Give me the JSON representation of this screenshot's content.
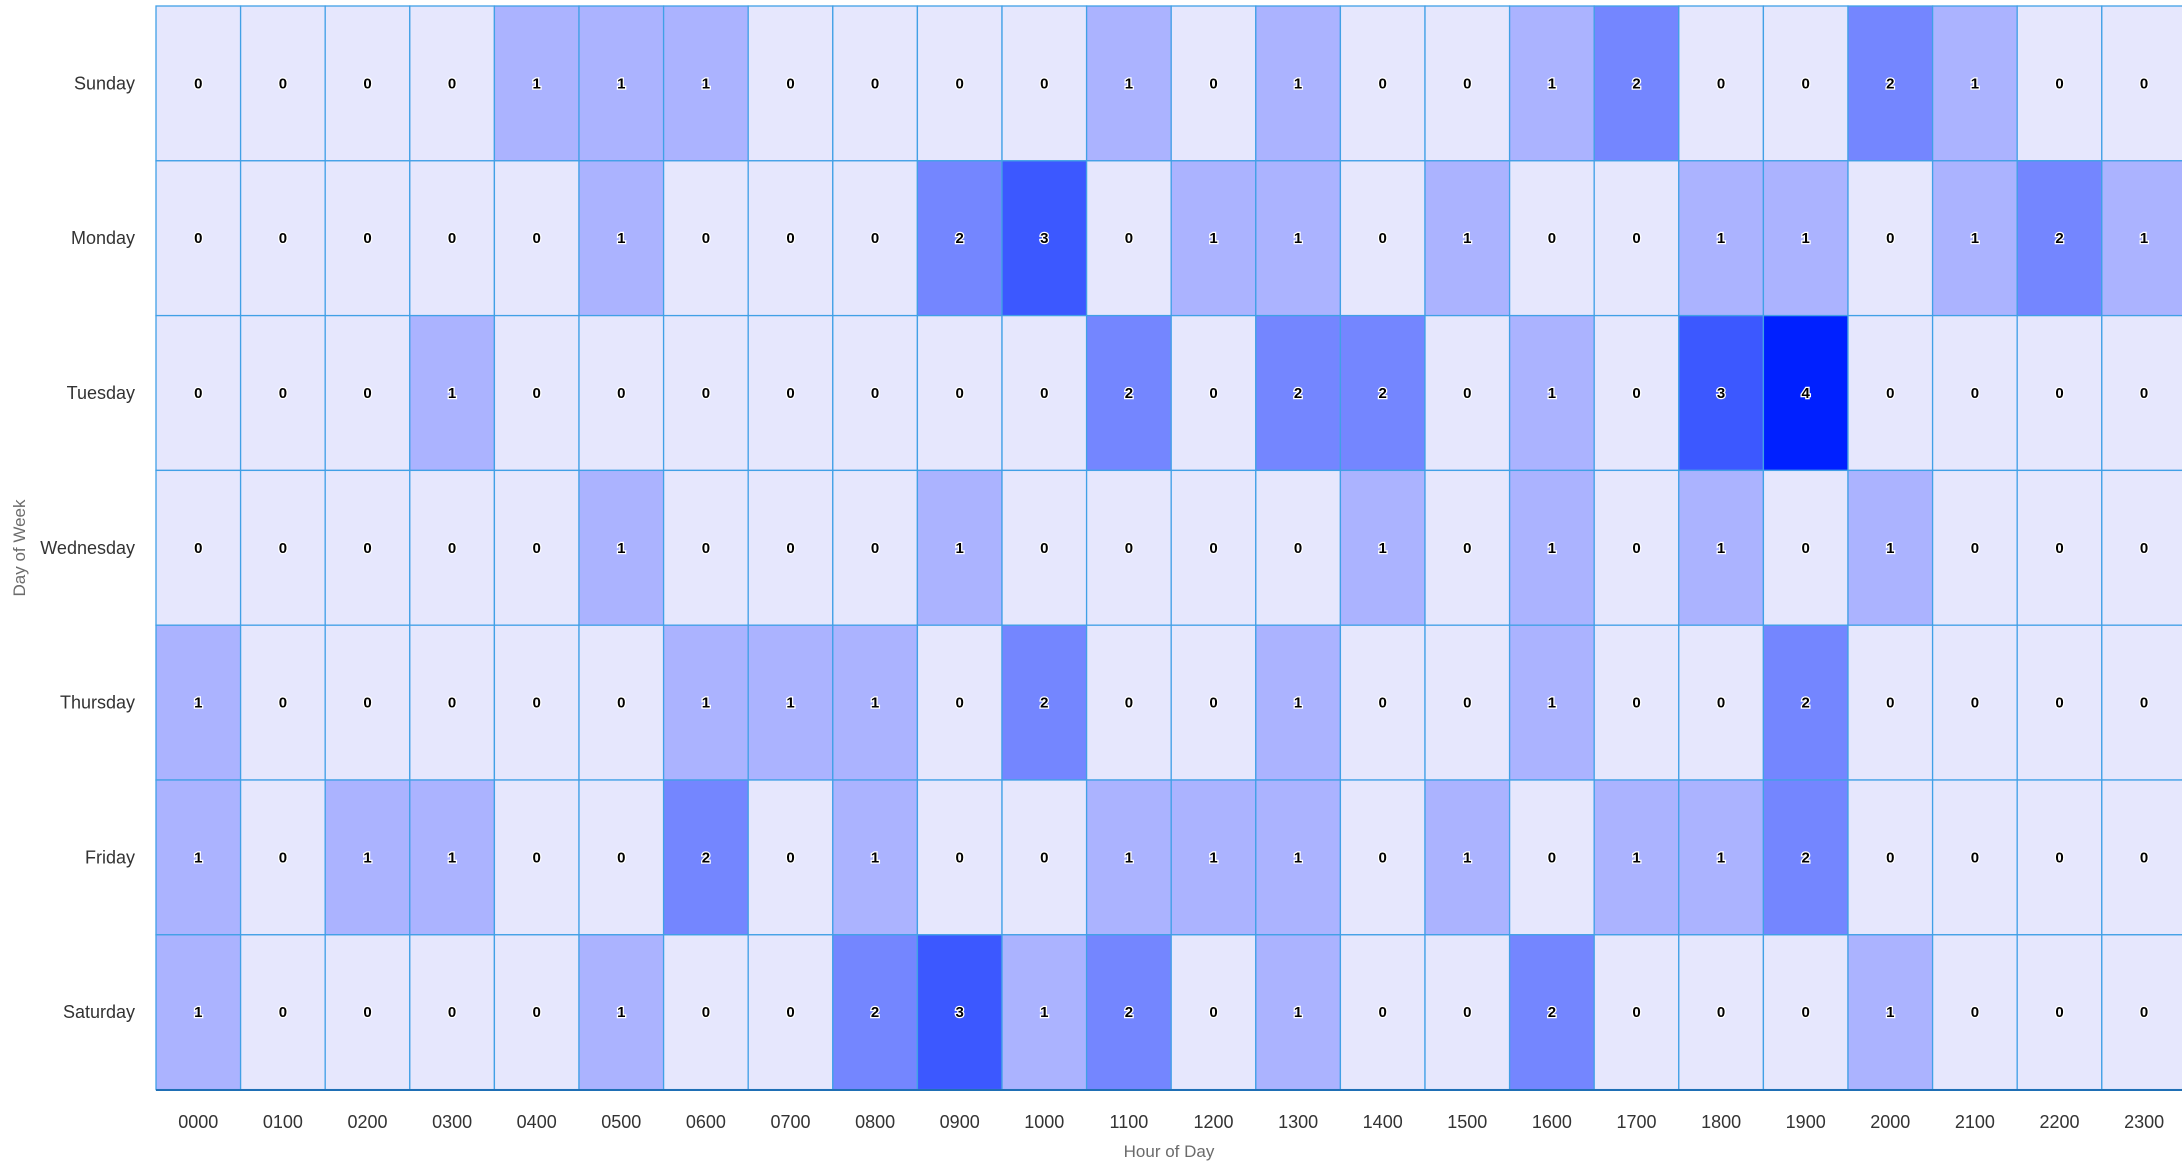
{
  "chart_data": {
    "type": "heatmap",
    "title": "",
    "xlabel": "Hour of Day",
    "ylabel": "Day of Week",
    "x_categories": [
      "0000",
      "0100",
      "0200",
      "0300",
      "0400",
      "0500",
      "0600",
      "0700",
      "0800",
      "0900",
      "1000",
      "1100",
      "1200",
      "1300",
      "1400",
      "1500",
      "1600",
      "1700",
      "1800",
      "1900",
      "2000",
      "2100",
      "2200",
      "2300"
    ],
    "y_categories": [
      "Sunday",
      "Monday",
      "Tuesday",
      "Wednesday",
      "Thursday",
      "Friday",
      "Saturday"
    ],
    "values": [
      [
        0,
        0,
        0,
        0,
        1,
        1,
        1,
        0,
        0,
        0,
        0,
        1,
        0,
        1,
        0,
        0,
        1,
        2,
        0,
        0,
        2,
        1,
        0,
        0
      ],
      [
        0,
        0,
        0,
        0,
        0,
        1,
        0,
        0,
        0,
        2,
        3,
        0,
        1,
        1,
        0,
        1,
        0,
        0,
        1,
        1,
        0,
        1,
        2,
        1
      ],
      [
        0,
        0,
        0,
        1,
        0,
        0,
        0,
        0,
        0,
        0,
        0,
        2,
        0,
        2,
        2,
        0,
        1,
        0,
        3,
        4,
        0,
        0,
        0,
        0
      ],
      [
        0,
        0,
        0,
        0,
        0,
        1,
        0,
        0,
        0,
        1,
        0,
        0,
        0,
        0,
        1,
        0,
        1,
        0,
        1,
        0,
        1,
        0,
        0,
        0
      ],
      [
        1,
        0,
        0,
        0,
        0,
        0,
        1,
        1,
        1,
        0,
        2,
        0,
        0,
        1,
        0,
        0,
        1,
        0,
        0,
        2,
        0,
        0,
        0,
        0
      ],
      [
        1,
        0,
        1,
        1,
        0,
        0,
        2,
        0,
        1,
        0,
        0,
        1,
        1,
        1,
        0,
        1,
        0,
        1,
        1,
        2,
        0,
        0,
        0,
        0
      ],
      [
        1,
        0,
        0,
        0,
        0,
        1,
        0,
        0,
        2,
        3,
        1,
        2,
        0,
        1,
        0,
        0,
        2,
        0,
        0,
        0,
        1,
        0,
        0,
        0
      ]
    ],
    "value_range": [
      0,
      4
    ],
    "color_scale": {
      "0": "#e6e7fd",
      "1": "#abb3ff",
      "2": "#7486ff",
      "3": "#3c58ff",
      "4": "#0020ff"
    },
    "cell_border_color": "#41a0e6",
    "legend": "none",
    "grid": true
  }
}
